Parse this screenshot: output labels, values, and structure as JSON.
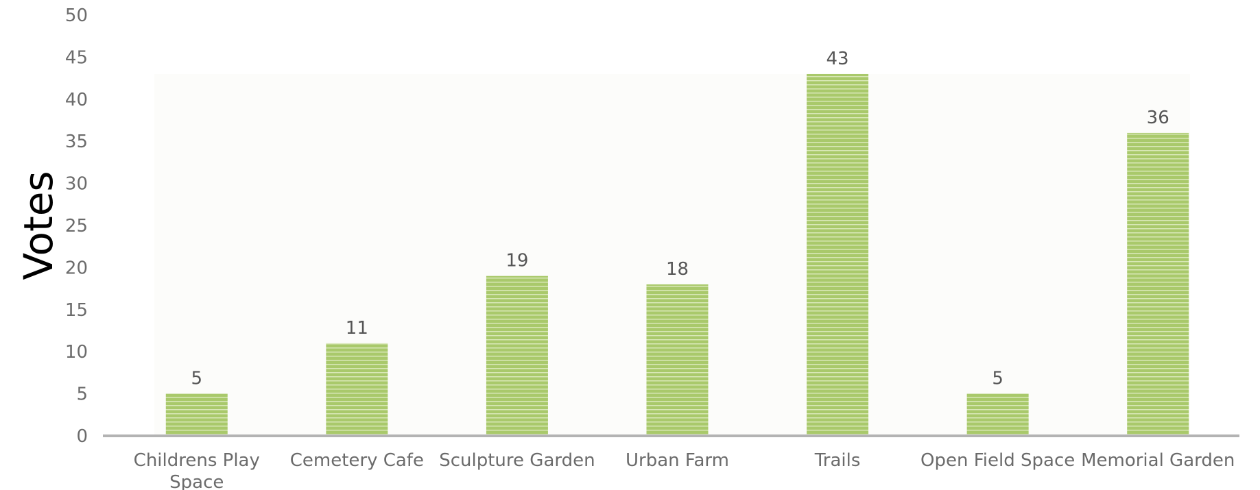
{
  "chart_data": {
    "type": "bar",
    "categories": [
      "Childrens Play Space",
      "Cemetery Cafe",
      "Sculpture Garden",
      "Urban Farm",
      "Trails",
      "Open Field Space",
      "Memorial Garden"
    ],
    "values": [
      5,
      11,
      19,
      18,
      43,
      5,
      36
    ],
    "title": "",
    "xlabel": "",
    "ylabel": "Votes",
    "ylim": [
      0,
      50
    ],
    "yticks": [
      0,
      5,
      10,
      15,
      20,
      25,
      30,
      35,
      40,
      45,
      50
    ],
    "data_labels": true,
    "grid": false,
    "legend": "none",
    "colors": {
      "bar": "#a9c96b",
      "bar_stripe": "#d9e8b8",
      "axis": "#b3b3b3",
      "plot_bg": "#fcfcfa"
    }
  }
}
